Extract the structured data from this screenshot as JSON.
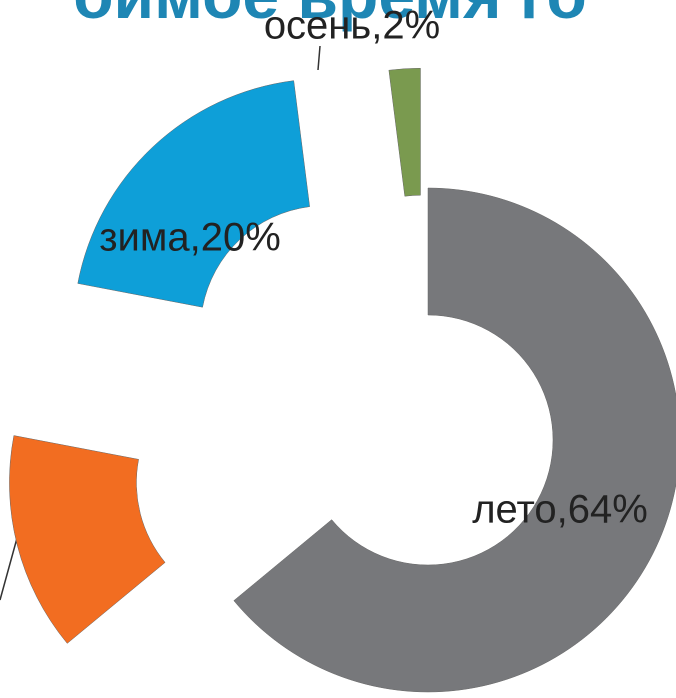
{
  "chart_data": {
    "type": "donut",
    "title": "оимое время го",
    "values": [
      64,
      14,
      20,
      2
    ],
    "value_labels": [
      "лето,64%",
      null,
      "зима,20%",
      "осень,2%"
    ],
    "colors": [
      "#77787b",
      "#f26d21",
      "#0e9fd8",
      "#7a9a4f"
    ]
  }
}
